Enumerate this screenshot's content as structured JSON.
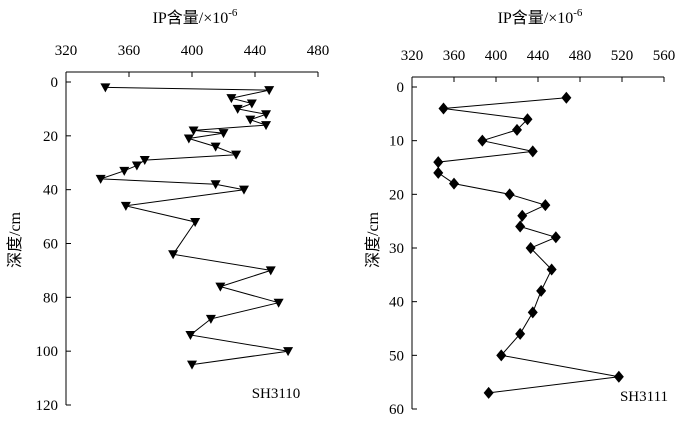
{
  "chart_data": [
    {
      "type": "line",
      "panel_label": "SH3110",
      "xlabel": "IP含量/×10",
      "xlabel_exponent": "-6",
      "ylabel": "深度/cm",
      "x_axis_position": "top",
      "y_inverted": true,
      "grid": false,
      "marker": "triangle-down",
      "xlim": [
        320,
        480
      ],
      "xticks": [
        320,
        360,
        400,
        440,
        480
      ],
      "ylim": [
        0,
        120
      ],
      "yticks": [
        0,
        20,
        40,
        60,
        80,
        100,
        120
      ],
      "series": [
        {
          "x": [
            345,
            449,
            425,
            438,
            429,
            447,
            437,
            447,
            401,
            420,
            398,
            415,
            428,
            370,
            365,
            357,
            342,
            415,
            433,
            358,
            402,
            388,
            450,
            418,
            455,
            412,
            399,
            461,
            400
          ],
          "y": [
            2,
            3,
            6,
            8,
            10,
            12,
            14,
            16,
            18,
            19,
            21,
            24,
            27,
            29,
            31,
            33,
            36,
            38,
            40,
            46,
            52,
            64,
            70,
            76,
            82,
            88,
            94,
            100,
            105
          ]
        }
      ]
    },
    {
      "type": "line",
      "panel_label": "SH3111",
      "xlabel": "IP含量/×10",
      "xlabel_exponent": "-6",
      "ylabel": "深度/cm",
      "x_axis_position": "top",
      "y_inverted": true,
      "grid": false,
      "marker": "diamond",
      "xlim": [
        320,
        560
      ],
      "xticks": [
        320,
        360,
        400,
        440,
        480,
        520,
        560
      ],
      "ylim": [
        0,
        60
      ],
      "yticks": [
        0,
        10,
        20,
        30,
        40,
        50,
        60
      ],
      "series": [
        {
          "x": [
            467,
            350,
            430,
            420,
            387,
            435,
            345,
            345,
            360,
            413,
            447,
            425,
            423,
            457,
            433,
            453,
            443,
            435,
            423,
            405,
            517,
            393
          ],
          "y": [
            2,
            4,
            6,
            8,
            10,
            12,
            14,
            16,
            18,
            20,
            22,
            24,
            26,
            28,
            30,
            34,
            38,
            42,
            46,
            50,
            54,
            57
          ]
        }
      ]
    }
  ]
}
